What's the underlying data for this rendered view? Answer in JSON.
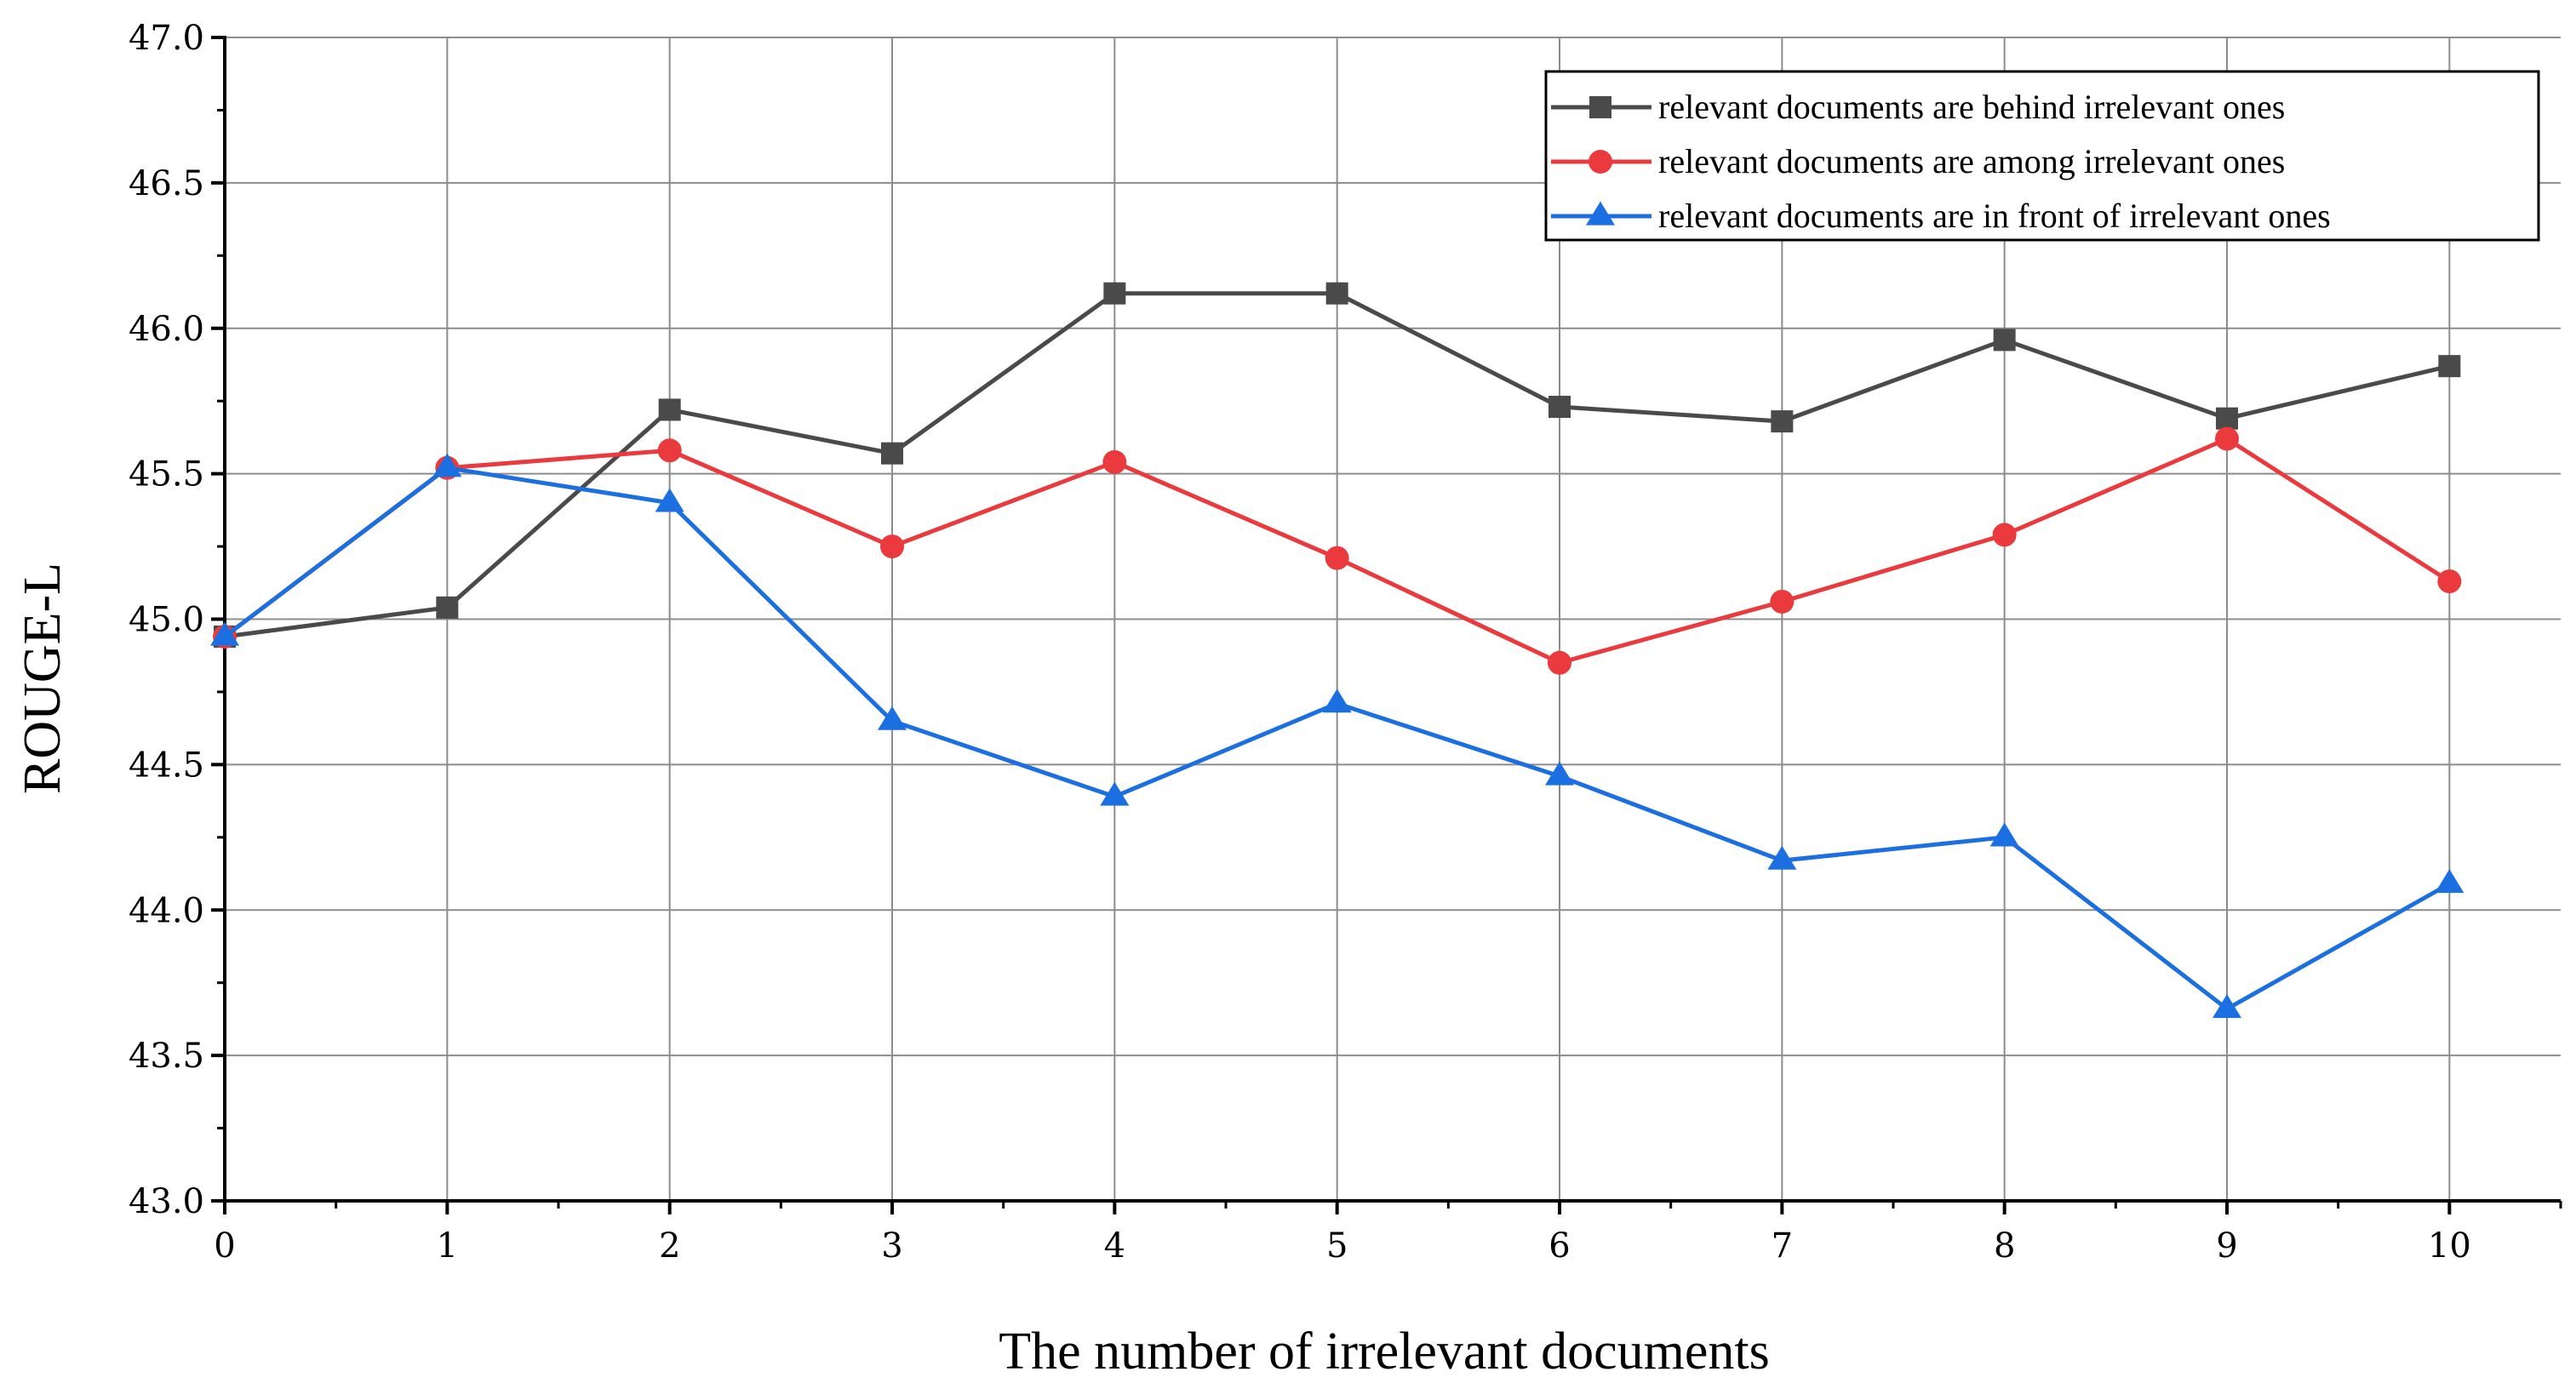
{
  "chart_data": {
    "type": "line",
    "title": "",
    "xlabel": "The number of irrelevant documents",
    "ylabel": "ROUGE-L",
    "x": [
      0,
      1,
      2,
      3,
      4,
      5,
      6,
      7,
      8,
      9,
      10
    ],
    "x_tick_labels": [
      "0",
      "1",
      "2",
      "3",
      "4",
      "5",
      "6",
      "7",
      "8",
      "9",
      "10"
    ],
    "y_tick_labels": [
      "43.0",
      "43.5",
      "44.0",
      "44.5",
      "45.0",
      "45.5",
      "46.0",
      "46.5",
      "47.0"
    ],
    "xlim": [
      0,
      10.5
    ],
    "ylim": [
      43.0,
      47.0
    ],
    "grid": true,
    "legend_position": "top-right",
    "series": [
      {
        "name": "relevant documents are behind irrelevant ones",
        "color": "#4a4a4a",
        "marker": "square",
        "values": [
          44.94,
          45.04,
          45.72,
          45.57,
          46.12,
          46.12,
          45.73,
          45.68,
          45.96,
          45.69,
          45.87
        ]
      },
      {
        "name": "relevant documents are among irrelevant ones",
        "color": "#ea3a3e",
        "marker": "circle",
        "values": [
          44.94,
          45.52,
          45.58,
          45.25,
          45.54,
          45.21,
          44.85,
          45.06,
          45.29,
          45.62,
          45.13
        ]
      },
      {
        "name": "relevant documents are in front of irrelevant ones",
        "color": "#1b6fe0",
        "marker": "triangle",
        "values": [
          44.94,
          45.52,
          45.4,
          44.65,
          44.39,
          44.71,
          44.46,
          44.17,
          44.25,
          43.66,
          44.09
        ]
      }
    ]
  }
}
